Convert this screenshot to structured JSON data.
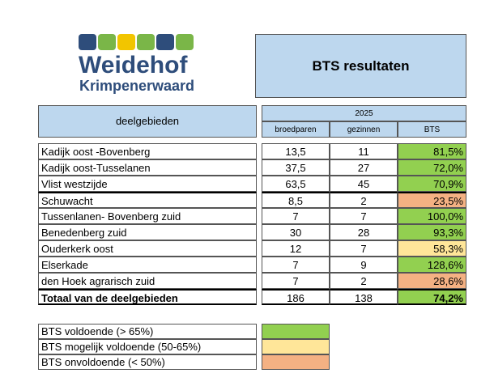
{
  "logo": {
    "title": "Weidehof",
    "subtitle": "Krimpenerwaard"
  },
  "header": {
    "title": "BTS resultaten"
  },
  "table": {
    "region_header": "deelgebieden",
    "year": "2025",
    "columns": [
      "broedparen",
      "gezinnen",
      "BTS"
    ],
    "rows": [
      {
        "name": "Kadijk oost -Bovenberg",
        "broedparen": "13,5",
        "gezinnen": "11",
        "bts": "81,5%",
        "color": "#92d050"
      },
      {
        "name": "Kadijk oost-Tusselanen",
        "broedparen": "37,5",
        "gezinnen": "27",
        "bts": "72,0%",
        "color": "#92d050"
      },
      {
        "name": "Vlist westzijde",
        "broedparen": "63,5",
        "gezinnen": "45",
        "bts": "70,9%",
        "color": "#92d050"
      },
      {
        "name": "Schuwacht",
        "broedparen": "8,5",
        "gezinnen": "2",
        "bts": "23,5%",
        "color": "#f4b183"
      },
      {
        "name": "Tussenlanen- Bovenberg zuid",
        "broedparen": "7",
        "gezinnen": "7",
        "bts": "100,0%",
        "color": "#92d050"
      },
      {
        "name": "Benedenberg zuid",
        "broedparen": "30",
        "gezinnen": "28",
        "bts": "93,3%",
        "color": "#92d050"
      },
      {
        "name": "Ouderkerk oost",
        "broedparen": "12",
        "gezinnen": "7",
        "bts": "58,3%",
        "color": "#ffe699"
      },
      {
        "name": "Elserkade",
        "broedparen": "7",
        "gezinnen": "9",
        "bts": "128,6%",
        "color": "#92d050"
      },
      {
        "name": "den Hoek agrarisch zuid",
        "broedparen": "7",
        "gezinnen": "2",
        "bts": "28,6%",
        "color": "#f4b183"
      }
    ],
    "total": {
      "name": "Totaal van de deelgebieden",
      "broedparen": "186",
      "gezinnen": "138",
      "bts": "74,2%",
      "color": "#92d050"
    }
  },
  "legend": [
    {
      "label": "BTS voldoende (> 65%)",
      "color": "#92d050"
    },
    {
      "label": "BTS mogelijk voldoende (50-65%)",
      "color": "#ffe699"
    },
    {
      "label": "BTS onvoldoende (< 50%)",
      "color": "#f4b183"
    }
  ]
}
